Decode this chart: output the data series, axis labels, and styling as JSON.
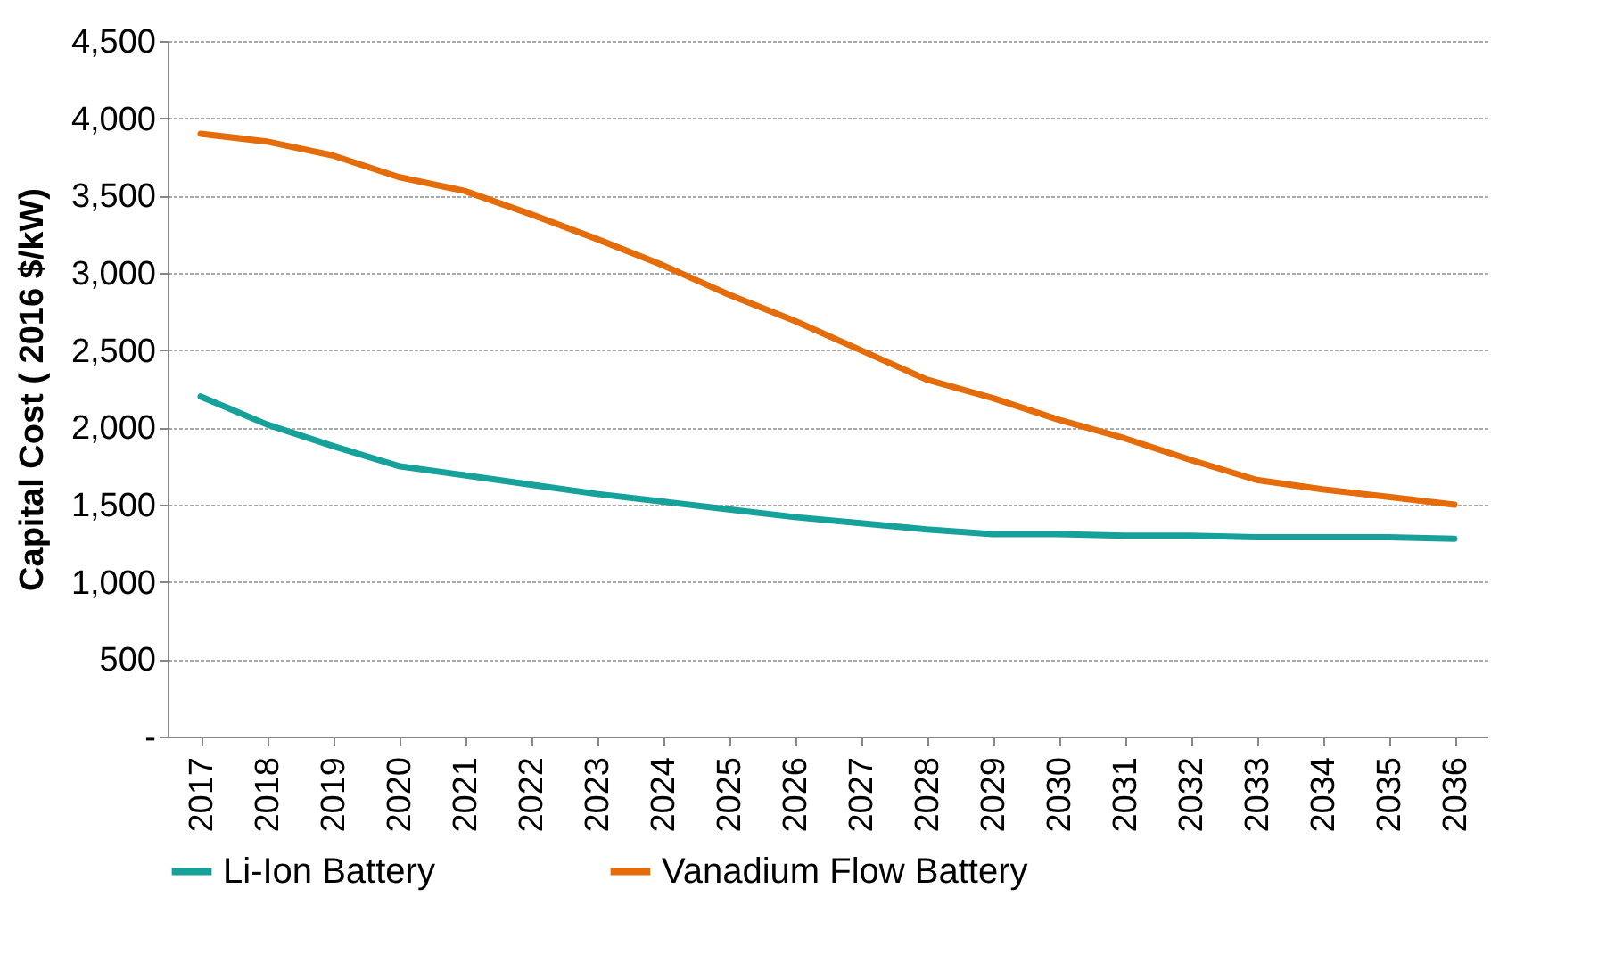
{
  "chart_data": {
    "type": "line",
    "ylabel": "Capital Cost ( 2016 $/kW)",
    "categories": [
      "2017",
      "2018",
      "2019",
      "2020",
      "2021",
      "2022",
      "2023",
      "2024",
      "2025",
      "2026",
      "2027",
      "2028",
      "2029",
      "2030",
      "2031",
      "2032",
      "2033",
      "2034",
      "2035",
      "2036"
    ],
    "series": [
      {
        "name": "Li-Ion Battery",
        "color": "#17a19b",
        "values": [
          2200,
          2020,
          1880,
          1750,
          1690,
          1630,
          1570,
          1520,
          1470,
          1420,
          1380,
          1340,
          1310,
          1310,
          1300,
          1300,
          1290,
          1290,
          1290,
          1280
        ]
      },
      {
        "name": "Vanadium Flow Battery",
        "color": "#e46c0a",
        "values": [
          3900,
          3850,
          3760,
          3620,
          3530,
          3380,
          3220,
          3050,
          2860,
          2690,
          2500,
          2310,
          2190,
          2050,
          1930,
          1790,
          1660,
          1600,
          1550,
          1500
        ]
      }
    ],
    "ylim": [
      0,
      4500
    ],
    "yticks": [
      {
        "value": 0,
        "label": "-"
      },
      {
        "value": 500,
        "label": "500"
      },
      {
        "value": 1000,
        "label": "1,000"
      },
      {
        "value": 1500,
        "label": "1,500"
      },
      {
        "value": 2000,
        "label": "2,000"
      },
      {
        "value": 2500,
        "label": "2,500"
      },
      {
        "value": 3000,
        "label": "3,000"
      },
      {
        "value": 3500,
        "label": "3,500"
      },
      {
        "value": 4000,
        "label": "4,000"
      },
      {
        "value": 4500,
        "label": "4,500"
      }
    ],
    "grid": "y",
    "legend": "bottom",
    "marker": "none",
    "line_style": "solid"
  }
}
